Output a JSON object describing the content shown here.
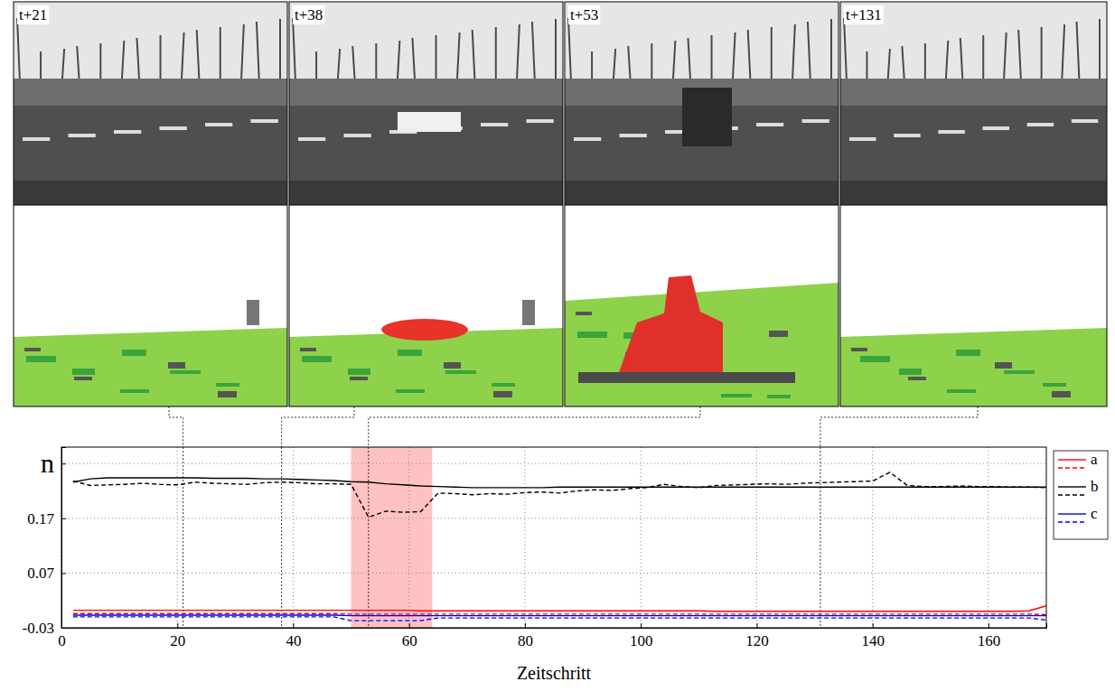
{
  "frames": [
    {
      "label": "t+21",
      "step": 21
    },
    {
      "label": "t+38",
      "step": 38
    },
    {
      "label": "t+53",
      "step": 53
    },
    {
      "label": "t+131",
      "step": 131
    }
  ],
  "chart_data": {
    "type": "line",
    "x_label": "Zeitschritt",
    "xlim": [
      0,
      170
    ],
    "xticks": [
      0,
      20,
      40,
      60,
      80,
      100,
      120,
      140,
      160
    ],
    "ylim": [
      -0.03,
      0.3
    ],
    "yticks": [
      {
        "value": 0.27,
        "label": "n"
      },
      0.17,
      0.07,
      -0.03
    ],
    "grid": true,
    "legend": "right",
    "highlight": [
      50,
      64
    ],
    "x": [
      2,
      5,
      8,
      11,
      14,
      17,
      20,
      23,
      26,
      29,
      32,
      35,
      38,
      41,
      44,
      47,
      50,
      53,
      56,
      59,
      62,
      65,
      68,
      71,
      74,
      77,
      80,
      83,
      86,
      89,
      92,
      95,
      98,
      101,
      104,
      107,
      110,
      113,
      116,
      119,
      122,
      125,
      128,
      131,
      134,
      137,
      140,
      143,
      146,
      149,
      152,
      155,
      158,
      161,
      164,
      167,
      170
    ],
    "series": [
      {
        "name": "a",
        "color": "#ff0000",
        "line_style": "solid",
        "values": [
          0.002,
          0.002,
          0.002,
          0.002,
          0.002,
          0.002,
          0.002,
          0.002,
          0.002,
          0.002,
          0.002,
          0.002,
          0.002,
          0.002,
          0.002,
          0.002,
          0.002,
          0.002,
          0.002,
          0.002,
          0.001,
          0.001,
          0.001,
          0.001,
          0.001,
          0.001,
          0.001,
          0.001,
          0.001,
          0.001,
          0.001,
          0.001,
          0.001,
          0.001,
          0.001,
          0.001,
          0.001,
          0.0,
          0.0,
          0.0,
          0.0,
          0.0,
          0.0,
          0.0,
          0.0,
          0.0,
          0.0,
          0.0,
          0.0,
          0.0,
          0.0,
          0.0,
          0.0,
          0.0,
          0.0,
          0.001,
          0.01
        ]
      },
      {
        "name": "a",
        "color": "#ff0000",
        "line_style": "dashed",
        "values": [
          -0.004,
          -0.004,
          -0.004,
          -0.004,
          -0.004,
          -0.004,
          -0.004,
          -0.004,
          -0.004,
          -0.004,
          -0.004,
          -0.004,
          -0.004,
          -0.004,
          -0.004,
          -0.004,
          -0.005,
          -0.005,
          -0.005,
          -0.005,
          -0.005,
          -0.005,
          -0.005,
          -0.005,
          -0.005,
          -0.005,
          -0.005,
          -0.005,
          -0.005,
          -0.005,
          -0.005,
          -0.005,
          -0.005,
          -0.005,
          -0.005,
          -0.005,
          -0.005,
          -0.005,
          -0.005,
          -0.005,
          -0.005,
          -0.005,
          -0.005,
          -0.005,
          -0.005,
          -0.005,
          -0.005,
          -0.005,
          -0.005,
          -0.005,
          -0.005,
          -0.005,
          -0.005,
          -0.005,
          -0.005,
          -0.005,
          -0.006
        ]
      },
      {
        "name": "b",
        "color": "#000000",
        "line_style": "solid",
        "values": [
          0.236,
          0.242,
          0.244,
          0.244,
          0.244,
          0.244,
          0.244,
          0.244,
          0.243,
          0.243,
          0.243,
          0.242,
          0.242,
          0.241,
          0.24,
          0.239,
          0.237,
          0.236,
          0.233,
          0.231,
          0.229,
          0.228,
          0.227,
          0.226,
          0.226,
          0.226,
          0.226,
          0.226,
          0.227,
          0.227,
          0.227,
          0.227,
          0.227,
          0.227,
          0.227,
          0.227,
          0.227,
          0.227,
          0.227,
          0.227,
          0.227,
          0.227,
          0.227,
          0.227,
          0.227,
          0.227,
          0.227,
          0.227,
          0.227,
          0.227,
          0.227,
          0.227,
          0.227,
          0.227,
          0.227,
          0.227,
          0.227
        ]
      },
      {
        "name": "b",
        "color": "#000000",
        "line_style": "dashed",
        "values": [
          0.238,
          0.23,
          0.231,
          0.232,
          0.234,
          0.232,
          0.231,
          0.236,
          0.234,
          0.233,
          0.232,
          0.235,
          0.236,
          0.235,
          0.233,
          0.233,
          0.232,
          0.172,
          0.183,
          0.181,
          0.182,
          0.216,
          0.215,
          0.213,
          0.215,
          0.214,
          0.217,
          0.218,
          0.216,
          0.22,
          0.222,
          0.221,
          0.224,
          0.226,
          0.232,
          0.228,
          0.226,
          0.23,
          0.231,
          0.232,
          0.233,
          0.232,
          0.234,
          0.235,
          0.236,
          0.237,
          0.238,
          0.254,
          0.23,
          0.228,
          0.228,
          0.229,
          0.228,
          0.228,
          0.227,
          0.227,
          0.226
        ]
      },
      {
        "name": "c",
        "color": "#0000ff",
        "line_style": "solid",
        "values": [
          -0.007,
          -0.007,
          -0.007,
          -0.007,
          -0.007,
          -0.007,
          -0.007,
          -0.007,
          -0.007,
          -0.007,
          -0.007,
          -0.007,
          -0.007,
          -0.007,
          -0.007,
          -0.007,
          -0.008,
          -0.008,
          -0.008,
          -0.008,
          -0.008,
          -0.008,
          -0.008,
          -0.008,
          -0.008,
          -0.008,
          -0.008,
          -0.008,
          -0.008,
          -0.008,
          -0.008,
          -0.008,
          -0.008,
          -0.008,
          -0.008,
          -0.008,
          -0.008,
          -0.008,
          -0.008,
          -0.008,
          -0.008,
          -0.008,
          -0.008,
          -0.008,
          -0.008,
          -0.008,
          -0.008,
          -0.008,
          -0.008,
          -0.008,
          -0.008,
          -0.008,
          -0.008,
          -0.008,
          -0.008,
          -0.008,
          -0.008
        ]
      },
      {
        "name": "c",
        "color": "#0000ff",
        "line_style": "dashed",
        "values": [
          -0.01,
          -0.01,
          -0.01,
          -0.01,
          -0.01,
          -0.01,
          -0.01,
          -0.01,
          -0.01,
          -0.01,
          -0.01,
          -0.01,
          -0.01,
          -0.01,
          -0.01,
          -0.01,
          -0.017,
          -0.017,
          -0.017,
          -0.017,
          -0.017,
          -0.012,
          -0.012,
          -0.012,
          -0.012,
          -0.012,
          -0.012,
          -0.012,
          -0.012,
          -0.012,
          -0.012,
          -0.012,
          -0.012,
          -0.012,
          -0.012,
          -0.012,
          -0.012,
          -0.012,
          -0.012,
          -0.012,
          -0.012,
          -0.012,
          -0.012,
          -0.012,
          -0.012,
          -0.012,
          -0.012,
          -0.012,
          -0.012,
          -0.012,
          -0.012,
          -0.012,
          -0.012,
          -0.012,
          -0.012,
          -0.012,
          -0.016
        ]
      }
    ]
  }
}
